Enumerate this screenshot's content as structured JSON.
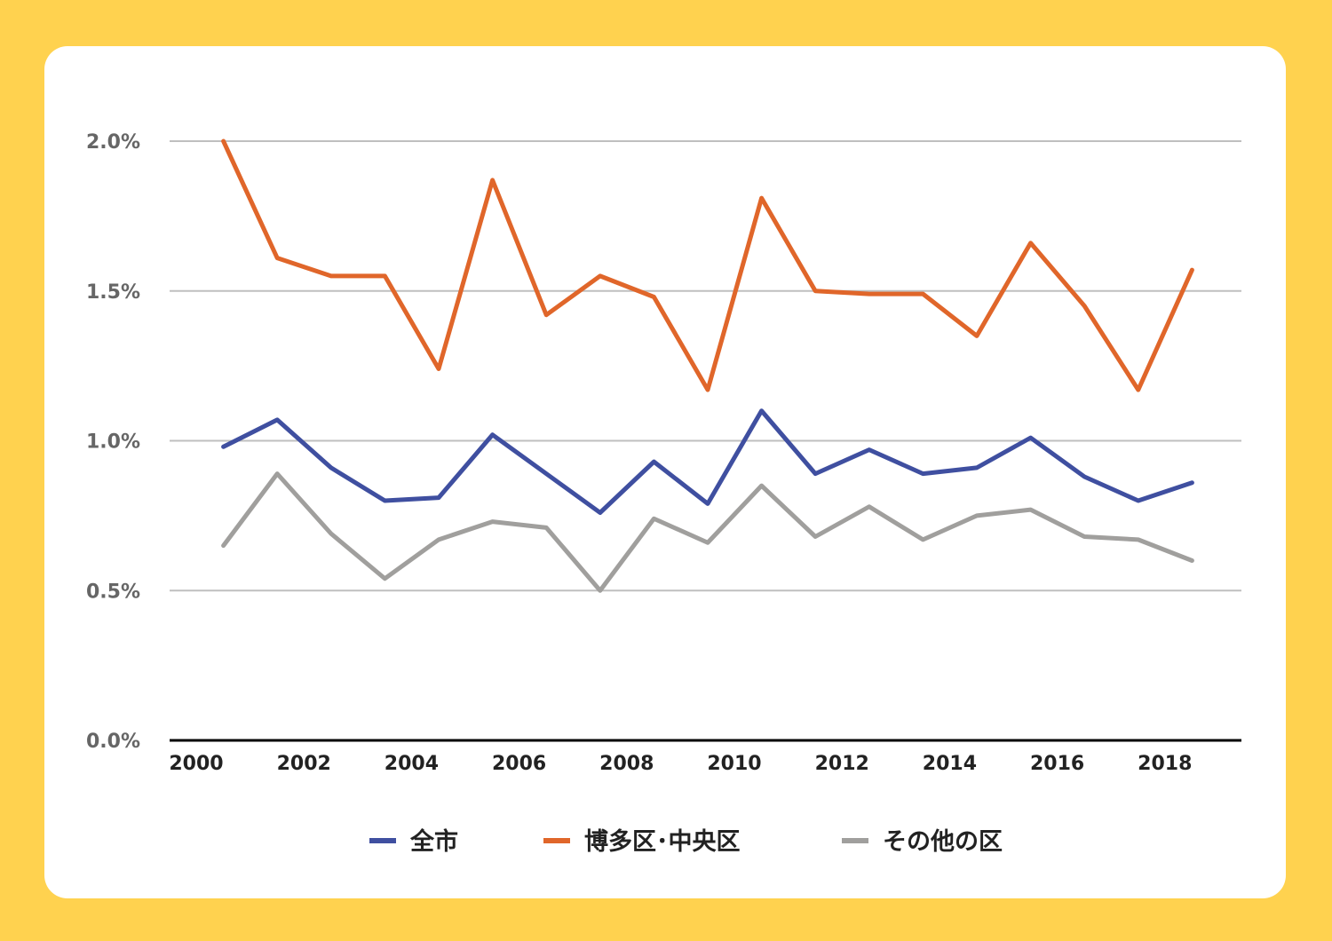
{
  "colors": {
    "background": "#FFD24F",
    "card": "#FFFFFF",
    "grid": "#BFBFBF",
    "axis": "#000000"
  },
  "chart_data": {
    "type": "line",
    "x": [
      2001,
      2002,
      2003,
      2004,
      2005,
      2006,
      2007,
      2008,
      2009,
      2010,
      2011,
      2012,
      2013,
      2014,
      2015,
      2016,
      2017,
      2018,
      2019
    ],
    "series": [
      {
        "name": "全市",
        "color": "#3F4FA0",
        "values": [
          0.98,
          1.07,
          0.91,
          0.8,
          0.81,
          1.02,
          0.89,
          0.76,
          0.93,
          0.79,
          1.1,
          0.89,
          0.97,
          0.89,
          0.91,
          1.01,
          0.88,
          0.8,
          0.86
        ]
      },
      {
        "name": "博多区･中央区",
        "color": "#E0662A",
        "values": [
          2.0,
          1.61,
          1.55,
          1.55,
          1.24,
          1.87,
          1.42,
          1.55,
          1.48,
          1.17,
          1.81,
          1.5,
          1.49,
          1.49,
          1.35,
          1.66,
          1.45,
          1.17,
          1.57
        ]
      },
      {
        "name": "その他の区",
        "color": "#A09F9D",
        "values": [
          0.65,
          0.89,
          0.69,
          0.54,
          0.67,
          0.73,
          0.71,
          0.5,
          0.74,
          0.66,
          0.85,
          0.68,
          0.78,
          0.67,
          0.75,
          0.77,
          0.68,
          0.67,
          0.6
        ]
      }
    ],
    "xlim": [
      2000,
      2019.5
    ],
    "ylim": [
      0.0,
      2.0
    ],
    "xticks": [
      2000,
      2002,
      2004,
      2006,
      2008,
      2010,
      2012,
      2014,
      2016,
      2018
    ],
    "xtick_labels": [
      "2000",
      "2002",
      "2004",
      "2006",
      "2008",
      "2010",
      "2012",
      "2014",
      "2016",
      "2018"
    ],
    "yticks": [
      0.0,
      0.5,
      1.0,
      1.5,
      2.0
    ],
    "ytick_labels": [
      "0.0%",
      "0.5%",
      "1.0%",
      "1.5%",
      "2.0%"
    ],
    "grid": true,
    "legend_position": "bottom"
  }
}
